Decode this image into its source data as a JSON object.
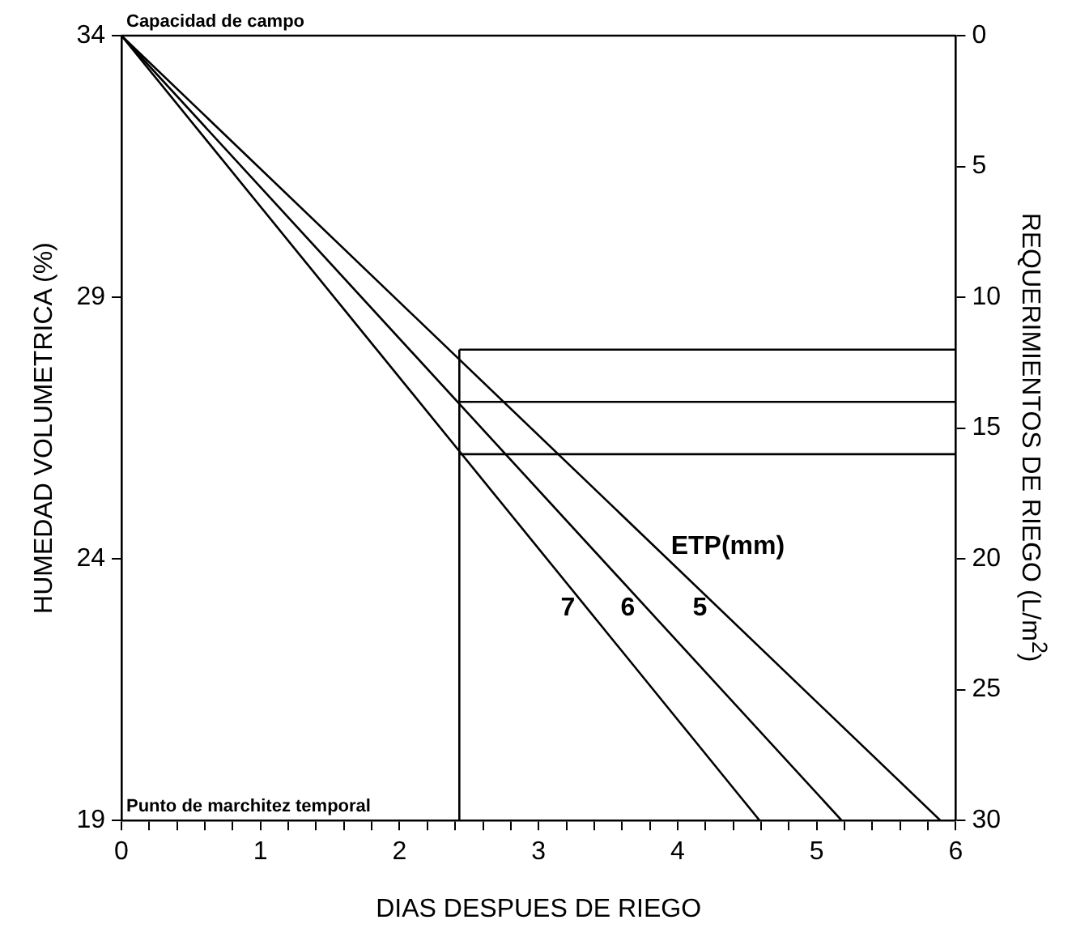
{
  "chart_data": {
    "type": "line",
    "xlabel": "DIAS DESPUES DE RIEGO",
    "ylabel": "HUMEDAD VOLUMETRICA (%)",
    "y2label": "REQUERIMIENTOS DE RIEGO (L/m$^{2}$)",
    "legend_title": "ETP(mm)",
    "xlim": [
      0,
      6
    ],
    "xticks": [
      0,
      {
        "value": 0.2,
        "label": null
      },
      {
        "value": 0.4,
        "label": null
      },
      {
        "value": 0.6,
        "label": null
      },
      {
        "value": 0.8,
        "label": null
      },
      1,
      {
        "value": 1.2,
        "label": null
      },
      {
        "value": 1.4,
        "label": null
      },
      {
        "value": 1.6,
        "label": null
      },
      {
        "value": 1.8,
        "label": null
      },
      2,
      {
        "value": 2.2,
        "label": null
      },
      {
        "value": 2.4,
        "label": null
      },
      {
        "value": 2.6,
        "label": null
      },
      {
        "value": 2.8,
        "label": null
      },
      3,
      {
        "value": 3.2,
        "label": null
      },
      {
        "value": 3.4,
        "label": null
      },
      {
        "value": 3.6,
        "label": null
      },
      {
        "value": 3.8,
        "label": null
      },
      4,
      {
        "value": 4.2,
        "label": null
      },
      {
        "value": 4.4,
        "label": null
      },
      {
        "value": 4.6,
        "label": null
      },
      {
        "value": 4.8,
        "label": null
      },
      5,
      {
        "value": 5.2,
        "label": null
      },
      {
        "value": 5.4,
        "label": null
      },
      {
        "value": 5.6,
        "label": null
      },
      {
        "value": 5.8,
        "label": null
      },
      6
    ],
    "ylim": [
      19,
      34
    ],
    "yticks": [
      19,
      24,
      29,
      34
    ],
    "y2lim": [
      30,
      0
    ],
    "y2ticks": [
      0,
      5,
      10,
      15,
      20,
      25,
      30
    ],
    "grid": false,
    "legend": false,
    "marker": "none",
    "line_style": "solid",
    "series": [
      {
        "name": "5",
        "color": "#000000",
        "x": [
          0,
          5.89
        ],
        "values": [
          34,
          19
        ]
      },
      {
        "name": "6",
        "color": "#000000",
        "x": [
          0,
          5.18
        ],
        "values": [
          34,
          19
        ]
      },
      {
        "name": "7",
        "color": "#000000",
        "x": [
          0,
          4.59
        ],
        "values": [
          34,
          19
        ]
      },
      {
        "color": "#000000",
        "x": [
          2.43,
          6
        ],
        "values": [
          28,
          28
        ]
      },
      {
        "color": "#000000",
        "x": [
          2.43,
          6
        ],
        "values": [
          27,
          27
        ]
      },
      {
        "color": "#000000",
        "x": [
          2.43,
          6
        ],
        "values": [
          26,
          26
        ]
      },
      {
        "color": "#000000",
        "x": [
          2.43,
          2.43
        ],
        "values": [
          19,
          28
        ]
      }
    ],
    "annotations": [
      "Capacidad de campo",
      "Punto de marchitez temporal"
    ]
  }
}
